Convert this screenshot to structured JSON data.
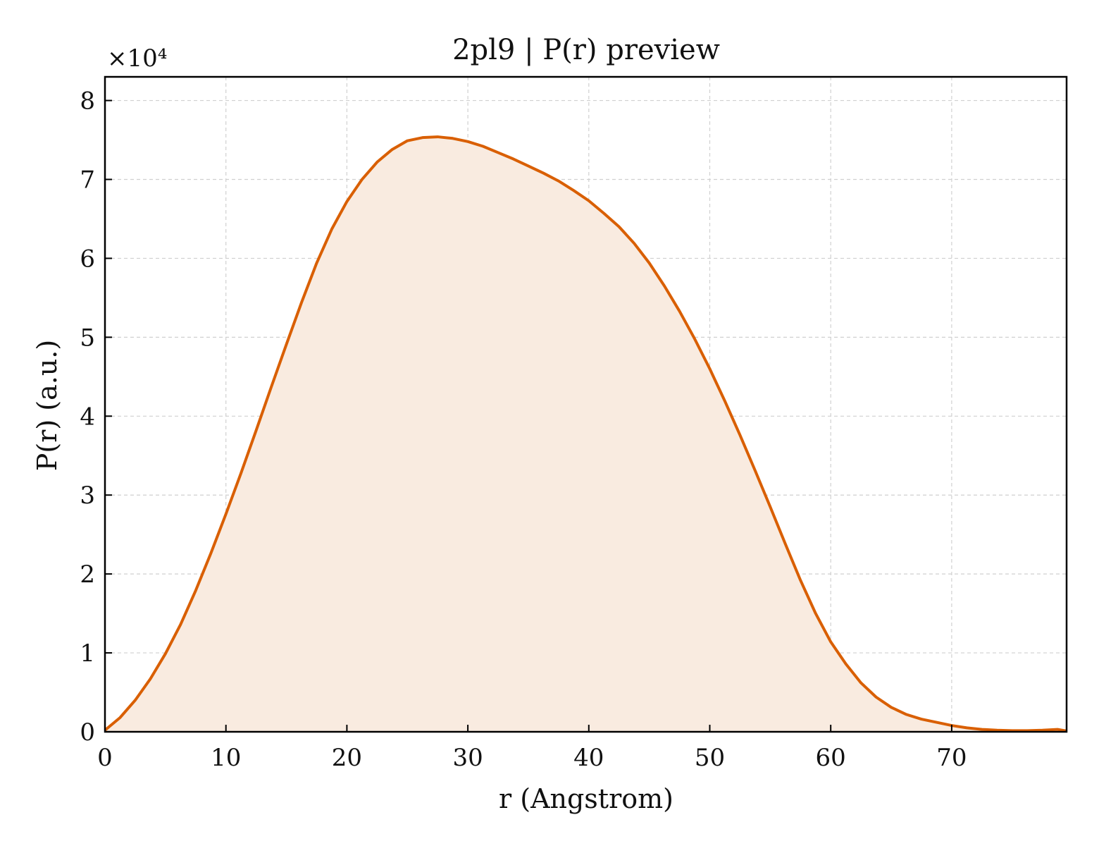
{
  "chart_data": {
    "type": "area",
    "title": "2pl9 | P(r) preview",
    "xlabel": "r (Angstrom)",
    "ylabel": "P(r) (a.u.)",
    "y_multiplier_label": "×10⁴",
    "xlim": [
      0,
      79.5
    ],
    "ylim": [
      0,
      8.3
    ],
    "xticks": [
      0,
      10,
      20,
      30,
      40,
      50,
      60,
      70
    ],
    "yticks": [
      0,
      1,
      2,
      3,
      4,
      5,
      6,
      7,
      8
    ],
    "grid": true,
    "line_color": "#d95f02",
    "fill_color": "#f9ebe0",
    "series": [
      {
        "x": [
          0,
          1.25,
          2.5,
          3.75,
          5,
          6.25,
          7.5,
          8.75,
          10,
          11.25,
          12.5,
          13.75,
          15,
          16.25,
          17.5,
          18.75,
          20,
          21.25,
          22.5,
          23.75,
          25,
          26.25,
          27.5,
          28.75,
          30,
          31.25,
          32.5,
          33.75,
          35,
          36.25,
          37.5,
          38.75,
          40,
          41.25,
          42.5,
          43.75,
          45,
          46.25,
          47.5,
          48.75,
          50,
          51.25,
          52.5,
          53.75,
          55,
          56.25,
          57.5,
          58.75,
          60,
          61.25,
          62.5,
          63.75,
          65,
          66.25,
          67.5,
          68.75,
          70,
          71.25,
          72.5,
          73.75,
          75,
          76.25,
          77.5,
          78.75,
          79.5
        ],
        "values": [
          0.02,
          0.18,
          0.4,
          0.67,
          0.99,
          1.36,
          1.79,
          2.26,
          2.76,
          3.28,
          3.82,
          4.37,
          4.91,
          5.44,
          5.94,
          6.37,
          6.72,
          7.0,
          7.22,
          7.38,
          7.49,
          7.53,
          7.54,
          7.52,
          7.48,
          7.42,
          7.34,
          7.26,
          7.17,
          7.08,
          6.98,
          6.86,
          6.73,
          6.57,
          6.4,
          6.19,
          5.94,
          5.65,
          5.33,
          4.98,
          4.6,
          4.19,
          3.76,
          3.31,
          2.85,
          2.38,
          1.92,
          1.5,
          1.14,
          0.86,
          0.62,
          0.44,
          0.31,
          0.22,
          0.16,
          0.12,
          0.08,
          0.05,
          0.03,
          0.02,
          0.015,
          0.015,
          0.02,
          0.03,
          0.01
        ]
      }
    ]
  }
}
